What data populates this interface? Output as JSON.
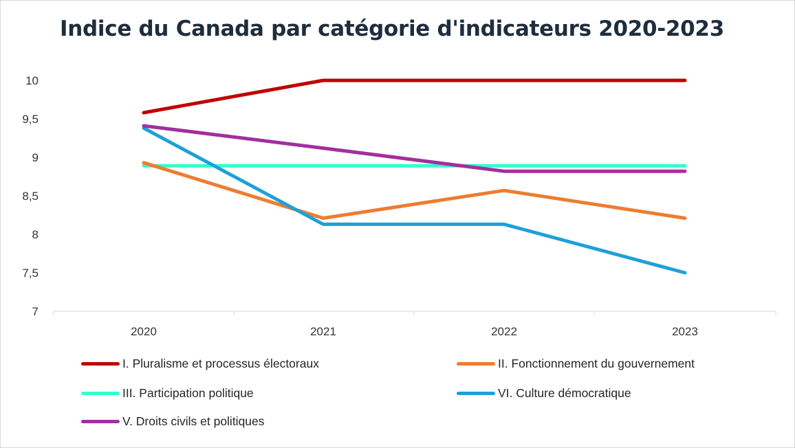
{
  "chart_data": {
    "type": "line",
    "title": "Indice du Canada par catégorie d'indicateurs 2020-2023",
    "xlabel": "",
    "ylabel": "",
    "categories": [
      "2020",
      "2021",
      "2022",
      "2023"
    ],
    "ylim": [
      7,
      10
    ],
    "yticks": [
      7,
      7.5,
      8,
      8.5,
      9,
      9.5,
      10
    ],
    "ytick_labels": [
      "7",
      "7,5",
      "8",
      "8,5",
      "9",
      "9,5",
      "10"
    ],
    "grid": false,
    "legend_position": "bottom",
    "series": [
      {
        "name": "I. Pluralisme et processus électoraux",
        "color": "#c00000",
        "values": [
          9.58,
          10,
          10,
          10
        ]
      },
      {
        "name": "II. Fonctionnement du gouvernement",
        "color": "#ed7d31",
        "values": [
          8.93,
          8.21,
          8.57,
          8.21
        ]
      },
      {
        "name": "III. Participation politique",
        "color": "#33ffcc",
        "values": [
          8.89,
          8.89,
          8.89,
          8.89
        ]
      },
      {
        "name": "VI. Culture démocratique",
        "color": "#1ea0d8",
        "values": [
          9.38,
          8.13,
          8.13,
          7.5
        ]
      },
      {
        "name": "V. Droits civils et politiques",
        "color": "#a0309e",
        "values": [
          9.41,
          9.12,
          8.82,
          8.82
        ]
      }
    ]
  }
}
